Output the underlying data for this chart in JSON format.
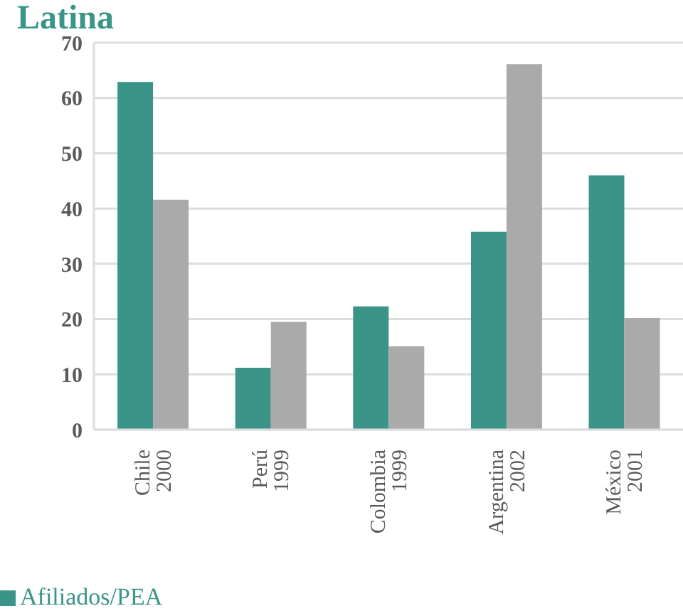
{
  "chart_data": {
    "type": "bar",
    "title": "Latina",
    "categories": [
      "Chile\n2000",
      "Perú\n1999",
      "Colombia\n1999",
      "Argentina\n2002",
      "México\n2001"
    ],
    "series": [
      {
        "name": "Afiliados/PEA",
        "color": "#3a9488",
        "values": [
          62.9,
          11.2,
          22.3,
          35.8,
          46.0
        ]
      },
      {
        "color": "#aaaaaa",
        "values": [
          41.6,
          19.5,
          15.1,
          66.1,
          20.2
        ]
      }
    ],
    "ylim": [
      0,
      70
    ],
    "yticks": [
      0,
      10,
      20,
      30,
      40,
      50,
      60,
      70
    ],
    "grid": "y",
    "legend": "bottom left"
  }
}
